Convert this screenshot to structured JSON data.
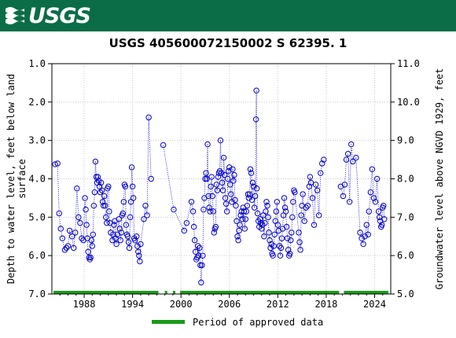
{
  "header": {
    "logo_text": "USGS",
    "color": "#0a6d47"
  },
  "chart_data": {
    "type": "scatter",
    "title": "USGS 405600072150002 S 62395. 1",
    "ylabel_left": "Depth to water level, feet below land surface",
    "ylabel_right": "Groundwater level above NGVD 1929, feet",
    "ylim_left": [
      7.0,
      1.0
    ],
    "ylim_right": [
      5.0,
      11.0
    ],
    "xlim": [
      1984.0,
      2026.0
    ],
    "x_ticks": [
      1988,
      1994,
      2000,
      2006,
      2012,
      2018,
      2024
    ],
    "y_ticks_left": [
      "1.0",
      "2.0",
      "3.0",
      "4.0",
      "5.0",
      "6.0",
      "7.0"
    ],
    "y_ticks_right": [
      "5.0",
      "6.0",
      "7.0",
      "8.0",
      "9.0",
      "10.0",
      "11.0"
    ],
    "grid": true,
    "legend": {
      "position": "bottom",
      "label": "Period of approved data",
      "color": "#1a9b1a"
    },
    "marker_color": "#0000cc",
    "approved_periods": [
      [
        1984.2,
        1997.2
      ],
      [
        1998.0,
        1998.3
      ],
      [
        1999.0,
        1999.3
      ],
      [
        1999.9,
        2019.6
      ],
      [
        2020.2,
        2025.7
      ]
    ],
    "series": [
      {
        "points": [
          [
            1984.4,
            3.62
          ],
          [
            1984.7,
            3.6
          ],
          [
            1984.9,
            4.9
          ],
          [
            1985.1,
            5.3
          ],
          [
            1985.3,
            5.55
          ],
          [
            1985.6,
            5.85
          ],
          [
            1985.8,
            5.8
          ],
          [
            1986.0,
            5.75
          ],
          [
            1986.2,
            5.35
          ],
          [
            1986.5,
            5.5
          ],
          [
            1986.7,
            5.8
          ],
          [
            1986.9,
            5.4
          ],
          [
            1987.1,
            4.25
          ],
          [
            1987.3,
            5.0
          ],
          [
            1987.5,
            5.15
          ],
          [
            1987.7,
            5.55
          ],
          [
            1987.9,
            5.6
          ],
          [
            1988.1,
            4.5
          ],
          [
            1988.2,
            4.8
          ],
          [
            1988.3,
            5.2
          ],
          [
            1988.4,
            5.55
          ],
          [
            1988.5,
            5.9
          ],
          [
            1988.6,
            6.05
          ],
          [
            1988.7,
            6.1
          ],
          [
            1988.8,
            6.05
          ],
          [
            1988.9,
            5.6
          ],
          [
            1989.0,
            5.75
          ],
          [
            1989.1,
            5.45
          ],
          [
            1989.2,
            4.7
          ],
          [
            1989.3,
            4.35
          ],
          [
            1989.4,
            3.55
          ],
          [
            1989.5,
            3.95
          ],
          [
            1989.6,
            4.1
          ],
          [
            1989.7,
            3.95
          ],
          [
            1989.8,
            4.05
          ],
          [
            1989.9,
            4.2
          ],
          [
            1990.0,
            4.35
          ],
          [
            1990.1,
            4.1
          ],
          [
            1990.2,
            4.3
          ],
          [
            1990.3,
            4.6
          ],
          [
            1990.4,
            4.7
          ],
          [
            1990.5,
            4.45
          ],
          [
            1990.6,
            4.7
          ],
          [
            1990.7,
            5.0
          ],
          [
            1990.8,
            5.15
          ],
          [
            1990.9,
            4.25
          ],
          [
            1991.0,
            4.2
          ],
          [
            1991.1,
            4.85
          ],
          [
            1991.2,
            5.15
          ],
          [
            1991.3,
            5.4
          ],
          [
            1991.5,
            5.6
          ],
          [
            1991.6,
            5.45
          ],
          [
            1991.7,
            5.2
          ],
          [
            1991.8,
            5.1
          ],
          [
            1991.9,
            5.55
          ],
          [
            1992.0,
            5.7
          ],
          [
            1992.1,
            5.45
          ],
          [
            1992.3,
            5.05
          ],
          [
            1992.4,
            5.3
          ],
          [
            1992.5,
            5.6
          ],
          [
            1992.6,
            5.4
          ],
          [
            1992.7,
            4.95
          ],
          [
            1992.8,
            4.9
          ],
          [
            1992.9,
            4.6
          ],
          [
            1993.0,
            4.15
          ],
          [
            1993.1,
            4.2
          ],
          [
            1993.2,
            5.2
          ],
          [
            1993.3,
            5.45
          ],
          [
            1993.4,
            5.5
          ],
          [
            1993.5,
            5.65
          ],
          [
            1993.6,
            5.8
          ],
          [
            1993.7,
            5.0
          ],
          [
            1993.8,
            4.6
          ],
          [
            1993.9,
            3.7
          ],
          [
            1994.0,
            4.2
          ],
          [
            1994.1,
            4.5
          ],
          [
            1994.2,
            5.55
          ],
          [
            1994.3,
            5.6
          ],
          [
            1994.5,
            5.5
          ],
          [
            1994.6,
            5.75
          ],
          [
            1994.7,
            5.9
          ],
          [
            1994.8,
            6.0
          ],
          [
            1994.9,
            6.15
          ],
          [
            1995.0,
            5.7
          ],
          [
            1995.4,
            5.05
          ],
          [
            1995.6,
            4.7
          ],
          [
            1995.8,
            4.95
          ],
          [
            1996.0,
            2.4
          ],
          [
            1996.3,
            4.0
          ],
          [
            1997.8,
            3.12
          ],
          [
            1999.1,
            4.8
          ],
          [
            2000.4,
            5.35
          ],
          [
            2000.7,
            5.15
          ],
          [
            2001.3,
            4.6
          ],
          [
            2001.5,
            4.85
          ],
          [
            2001.6,
            5.25
          ],
          [
            2001.7,
            5.6
          ],
          [
            2001.8,
            5.9
          ],
          [
            2001.9,
            6.1
          ],
          [
            2002.0,
            6.05
          ],
          [
            2002.1,
            5.75
          ],
          [
            2002.2,
            6.0
          ],
          [
            2002.3,
            5.8
          ],
          [
            2002.4,
            6.25
          ],
          [
            2002.5,
            6.7
          ],
          [
            2002.6,
            6.25
          ],
          [
            2002.7,
            6.0
          ],
          [
            2002.8,
            4.8
          ],
          [
            2002.9,
            4.5
          ],
          [
            2003.0,
            4.0
          ],
          [
            2003.1,
            3.85
          ],
          [
            2003.2,
            4.0
          ],
          [
            2003.3,
            3.1
          ],
          [
            2003.4,
            4.45
          ],
          [
            2003.5,
            4.75
          ],
          [
            2003.6,
            4.85
          ],
          [
            2003.7,
            4.2
          ],
          [
            2003.8,
            3.95
          ],
          [
            2003.9,
            4.45
          ],
          [
            2004.0,
            4.85
          ],
          [
            2004.1,
            5.4
          ],
          [
            2004.2,
            5.3
          ],
          [
            2004.3,
            5.25
          ],
          [
            2004.4,
            4.15
          ],
          [
            2004.5,
            4.3
          ],
          [
            2004.6,
            3.95
          ],
          [
            2004.7,
            3.85
          ],
          [
            2004.8,
            3.8
          ],
          [
            2004.9,
            3.0
          ],
          [
            2005.0,
            3.85
          ],
          [
            2005.1,
            4.1
          ],
          [
            2005.2,
            4.3
          ],
          [
            2005.3,
            3.45
          ],
          [
            2005.4,
            3.9
          ],
          [
            2005.5,
            4.5
          ],
          [
            2005.6,
            4.65
          ],
          [
            2005.7,
            4.85
          ],
          [
            2005.8,
            4.0
          ],
          [
            2005.9,
            3.8
          ],
          [
            2006.0,
            3.7
          ],
          [
            2006.1,
            4.15
          ],
          [
            2006.2,
            4.4
          ],
          [
            2006.3,
            4.6
          ],
          [
            2006.4,
            3.75
          ],
          [
            2006.5,
            4.05
          ],
          [
            2006.6,
            3.9
          ],
          [
            2006.7,
            4.55
          ],
          [
            2006.8,
            4.7
          ],
          [
            2006.9,
            5.1
          ],
          [
            2007.0,
            5.5
          ],
          [
            2007.1,
            5.6
          ],
          [
            2007.2,
            5.35
          ],
          [
            2007.3,
            5.2
          ],
          [
            2007.4,
            4.95
          ],
          [
            2007.5,
            4.85
          ],
          [
            2007.6,
            5.05
          ],
          [
            2007.7,
            4.75
          ],
          [
            2007.8,
            4.85
          ],
          [
            2007.9,
            5.3
          ],
          [
            2008.0,
            5.05
          ],
          [
            2008.1,
            4.85
          ],
          [
            2008.2,
            4.7
          ],
          [
            2008.3,
            4.4
          ],
          [
            2008.4,
            4.5
          ],
          [
            2008.5,
            4.4
          ],
          [
            2008.6,
            3.75
          ],
          [
            2008.7,
            3.85
          ],
          [
            2008.8,
            4.55
          ],
          [
            2008.9,
            4.1
          ],
          [
            2009.0,
            4.2
          ],
          [
            2009.1,
            4.75
          ],
          [
            2009.2,
            4.45
          ],
          [
            2009.3,
            2.45
          ],
          [
            2009.35,
            1.7
          ],
          [
            2009.4,
            4.25
          ],
          [
            2009.5,
            4.9
          ],
          [
            2009.6,
            5.1
          ],
          [
            2009.7,
            5.25
          ],
          [
            2009.8,
            5.05
          ],
          [
            2009.9,
            5.15
          ],
          [
            2010.0,
            5.3
          ],
          [
            2010.1,
            5.2
          ],
          [
            2010.2,
            4.95
          ],
          [
            2010.3,
            5.5
          ],
          [
            2010.4,
            5.15
          ],
          [
            2010.5,
            4.85
          ],
          [
            2010.6,
            4.6
          ],
          [
            2010.7,
            4.7
          ],
          [
            2010.8,
            5.0
          ],
          [
            2010.9,
            5.4
          ],
          [
            2011.0,
            5.6
          ],
          [
            2011.1,
            5.8
          ],
          [
            2011.2,
            5.7
          ],
          [
            2011.3,
            5.95
          ],
          [
            2011.4,
            6.0
          ],
          [
            2011.5,
            5.75
          ],
          [
            2011.6,
            5.45
          ],
          [
            2011.7,
            5.1
          ],
          [
            2011.8,
            4.85
          ],
          [
            2011.9,
            4.6
          ],
          [
            2012.0,
            5.2
          ],
          [
            2012.1,
            5.35
          ],
          [
            2012.2,
            5.75
          ],
          [
            2012.3,
            6.0
          ],
          [
            2012.4,
            5.8
          ],
          [
            2012.5,
            5.55
          ],
          [
            2012.6,
            5.3
          ],
          [
            2012.7,
            4.95
          ],
          [
            2012.8,
            4.5
          ],
          [
            2012.9,
            4.75
          ],
          [
            2013.0,
            4.85
          ],
          [
            2013.1,
            5.25
          ],
          [
            2013.2,
            5.55
          ],
          [
            2013.3,
            5.85
          ],
          [
            2013.4,
            6.0
          ],
          [
            2013.5,
            5.95
          ],
          [
            2013.6,
            5.6
          ],
          [
            2013.7,
            5.4
          ],
          [
            2013.8,
            5.0
          ],
          [
            2013.9,
            4.6
          ],
          [
            2014.0,
            4.3
          ],
          [
            2014.1,
            4.35
          ],
          [
            2014.6,
            5.4
          ],
          [
            2014.7,
            5.65
          ],
          [
            2014.8,
            5.85
          ],
          [
            2014.9,
            4.95
          ],
          [
            2015.0,
            4.7
          ],
          [
            2015.1,
            4.4
          ],
          [
            2015.3,
            5.1
          ],
          [
            2015.5,
            4.75
          ],
          [
            2015.7,
            4.7
          ],
          [
            2015.9,
            4.2
          ],
          [
            2016.0,
            3.95
          ],
          [
            2016.1,
            4.1
          ],
          [
            2016.3,
            4.5
          ],
          [
            2016.5,
            5.2
          ],
          [
            2016.7,
            4.15
          ],
          [
            2016.9,
            4.3
          ],
          [
            2017.1,
            4.95
          ],
          [
            2017.3,
            3.85
          ],
          [
            2017.5,
            3.6
          ],
          [
            2017.7,
            3.5
          ],
          [
            2019.8,
            4.2
          ],
          [
            2020.1,
            4.45
          ],
          [
            2020.3,
            4.15
          ],
          [
            2020.5,
            3.5
          ],
          [
            2020.7,
            3.35
          ],
          [
            2020.9,
            4.6
          ],
          [
            2021.1,
            3.1
          ],
          [
            2021.3,
            3.55
          ],
          [
            2021.7,
            3.45
          ],
          [
            2022.2,
            5.4
          ],
          [
            2022.4,
            5.55
          ],
          [
            2022.6,
            5.7
          ],
          [
            2022.8,
            5.5
          ],
          [
            2023.0,
            5.2
          ],
          [
            2023.2,
            5.45
          ],
          [
            2023.3,
            4.85
          ],
          [
            2023.5,
            4.35
          ],
          [
            2023.7,
            3.75
          ],
          [
            2023.9,
            4.5
          ],
          [
            2024.1,
            4.6
          ],
          [
            2024.3,
            4.0
          ],
          [
            2024.5,
            4.85
          ],
          [
            2024.6,
            5.0
          ],
          [
            2024.7,
            5.1
          ],
          [
            2024.8,
            5.25
          ],
          [
            2024.9,
            5.2
          ],
          [
            2025.0,
            4.75
          ],
          [
            2025.1,
            4.7
          ],
          [
            2025.2,
            5.05
          ]
        ]
      }
    ]
  }
}
